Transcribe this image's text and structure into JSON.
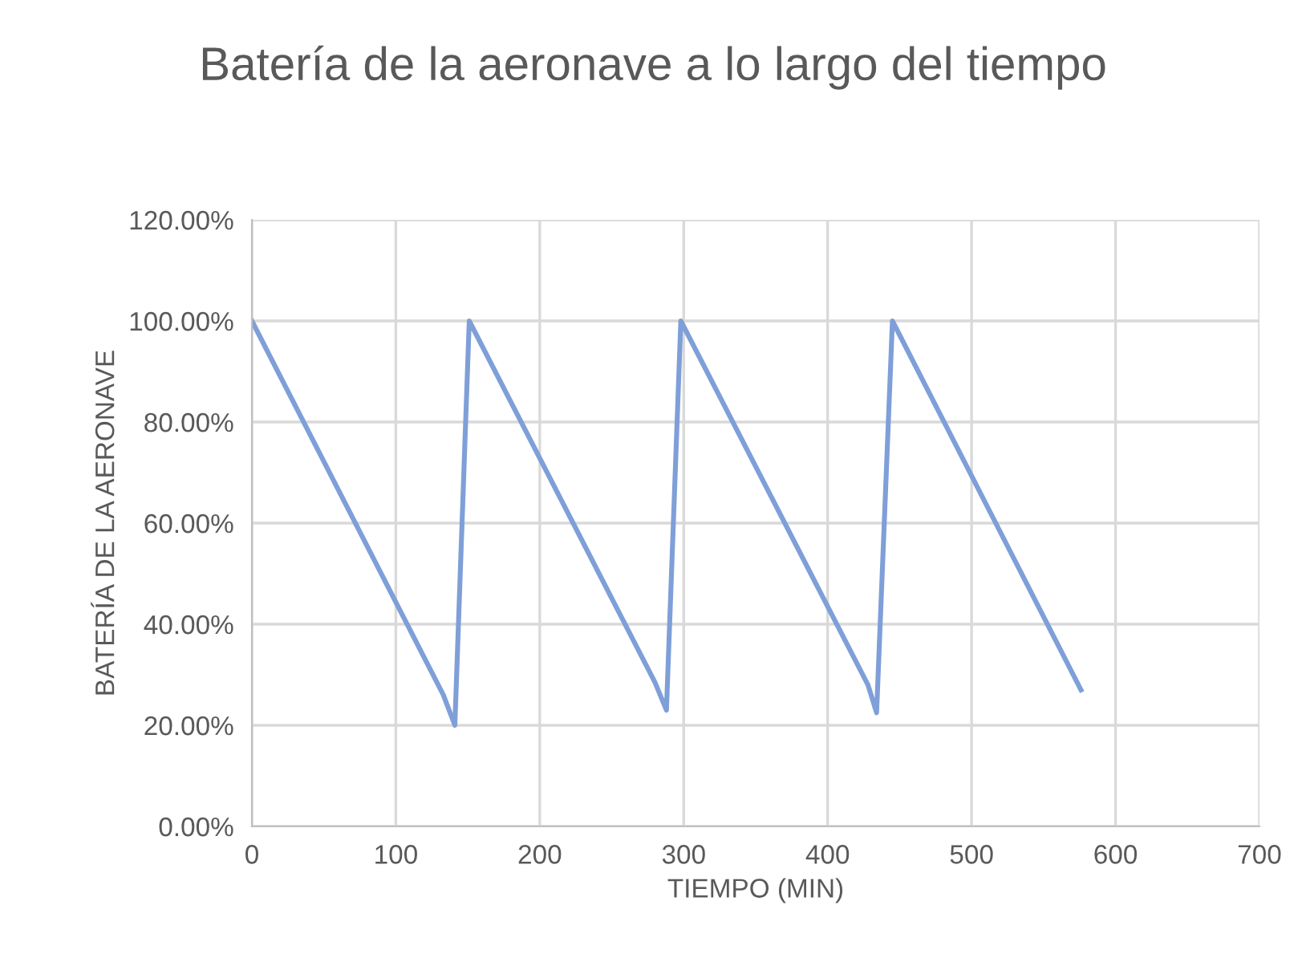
{
  "chart_data": {
    "type": "line",
    "title": "Batería de la aeronave a lo largo del tiempo",
    "xlabel": "TIEMPO (MIN)",
    "ylabel": "BATERÍA DE LA AERONAVE",
    "series": [
      {
        "color": "#7f9fd8",
        "x": [
          0,
          133,
          141,
          151,
          280,
          288,
          298,
          428,
          434,
          445,
          576
        ],
        "values": [
          1.0,
          0.26,
          0.2,
          1.0,
          0.285,
          0.23,
          1.0,
          0.28,
          0.225,
          1.0,
          0.27
        ]
      }
    ],
    "xlim": [
      0,
      700
    ],
    "xticks": [
      0,
      100,
      200,
      300,
      400,
      500,
      600,
      700
    ],
    "ylim": [
      0,
      1.2
    ],
    "yticks": [
      {
        "value": 0,
        "label": "0.00%"
      },
      {
        "value": 0.2,
        "label": "20.00%"
      },
      {
        "value": 0.4,
        "label": "40.00%"
      },
      {
        "value": 0.6,
        "label": "60.00%"
      },
      {
        "value": 0.8,
        "label": "80.00%"
      },
      {
        "value": 1.0,
        "label": "100.00%"
      },
      {
        "value": 1.2,
        "label": "120.00%"
      }
    ],
    "grid": true,
    "marker": "none",
    "line_style": "solid"
  }
}
